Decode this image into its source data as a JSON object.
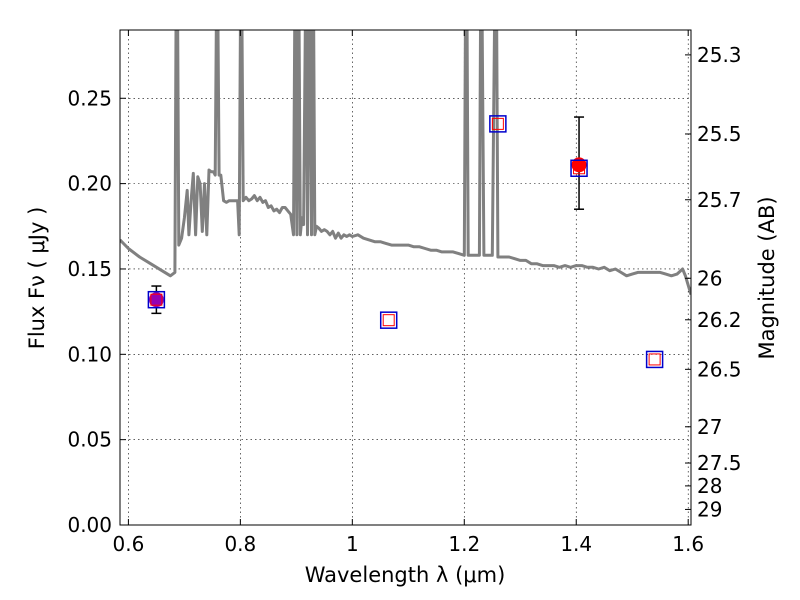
{
  "chart_data": {
    "type": "scatter",
    "title": "",
    "xlabel": "Wavelength  λ (μm)",
    "ylabel": "Flux  Fν  ( μJy )",
    "y2label": "Magnitude (AB)",
    "xlim": [
      0.585,
      1.605
    ],
    "ylim": [
      0.0,
      0.29
    ],
    "grid": true,
    "x_ticks": [
      0.6,
      0.8,
      1.0,
      1.2,
      1.4,
      1.6
    ],
    "x_tick_labels": [
      "0.6",
      "0.8",
      "1",
      "1.2",
      "1.4",
      "1.6"
    ],
    "y_ticks": [
      0.0,
      0.05,
      0.1,
      0.15,
      0.2,
      0.25
    ],
    "y_tick_labels": [
      "0.00",
      "0.05",
      "0.10",
      "0.15",
      "0.20",
      "0.25"
    ],
    "y2_ticks": [
      {
        "label": "25.3",
        "value": 25.3
      },
      {
        "label": "25.5",
        "value": 25.5
      },
      {
        "label": "25.7",
        "value": 25.7
      },
      {
        "label": "26",
        "value": 26.0
      },
      {
        "label": "26.2",
        "value": 26.2
      },
      {
        "label": "26.5",
        "value": 26.5
      },
      {
        "label": "27",
        "value": 27.0
      },
      {
        "label": "27.5",
        "value": 27.5
      },
      {
        "label": "28",
        "value": 28.0
      },
      {
        "label": "29",
        "value": 29.0
      }
    ],
    "series": [
      {
        "kind": "model_spectrum",
        "color": "#808080",
        "points": [
          [
            0.585,
            0.167
          ],
          [
            0.6,
            0.162
          ],
          [
            0.62,
            0.157
          ],
          [
            0.64,
            0.153
          ],
          [
            0.66,
            0.149
          ],
          [
            0.675,
            0.146
          ],
          [
            0.683,
            0.148
          ],
          [
            0.685,
            0.29
          ],
          [
            0.688,
            0.29
          ],
          [
            0.69,
            0.164
          ],
          [
            0.695,
            0.168
          ],
          [
            0.7,
            0.18
          ],
          [
            0.705,
            0.196
          ],
          [
            0.708,
            0.17
          ],
          [
            0.712,
            0.19
          ],
          [
            0.716,
            0.206
          ],
          [
            0.72,
            0.17
          ],
          [
            0.724,
            0.204
          ],
          [
            0.728,
            0.2
          ],
          [
            0.732,
            0.172
          ],
          [
            0.736,
            0.2
          ],
          [
            0.74,
            0.17
          ],
          [
            0.744,
            0.208
          ],
          [
            0.748,
            0.207
          ],
          [
            0.752,
            0.207
          ],
          [
            0.755,
            0.205
          ],
          [
            0.757,
            0.29
          ],
          [
            0.76,
            0.29
          ],
          [
            0.762,
            0.205
          ],
          [
            0.765,
            0.205
          ],
          [
            0.77,
            0.19
          ],
          [
            0.775,
            0.189
          ],
          [
            0.78,
            0.19
          ],
          [
            0.785,
            0.19
          ],
          [
            0.79,
            0.19
          ],
          [
            0.795,
            0.19
          ],
          [
            0.798,
            0.17
          ],
          [
            0.8,
            0.29
          ],
          [
            0.803,
            0.29
          ],
          [
            0.805,
            0.19
          ],
          [
            0.81,
            0.192
          ],
          [
            0.815,
            0.19
          ],
          [
            0.82,
            0.191
          ],
          [
            0.825,
            0.193
          ],
          [
            0.83,
            0.19
          ],
          [
            0.835,
            0.192
          ],
          [
            0.84,
            0.189
          ],
          [
            0.845,
            0.19
          ],
          [
            0.85,
            0.186
          ],
          [
            0.855,
            0.187
          ],
          [
            0.86,
            0.184
          ],
          [
            0.865,
            0.185
          ],
          [
            0.87,
            0.183
          ],
          [
            0.875,
            0.186
          ],
          [
            0.88,
            0.186
          ],
          [
            0.885,
            0.184
          ],
          [
            0.89,
            0.182
          ],
          [
            0.895,
            0.17
          ],
          [
            0.897,
            0.29
          ],
          [
            0.899,
            0.29
          ],
          [
            0.901,
            0.17
          ],
          [
            0.903,
            0.29
          ],
          [
            0.905,
            0.29
          ],
          [
            0.907,
            0.17
          ],
          [
            0.91,
            0.18
          ],
          [
            0.913,
            0.176
          ],
          [
            0.916,
            0.29
          ],
          [
            0.918,
            0.29
          ],
          [
            0.92,
            0.17
          ],
          [
            0.923,
            0.29
          ],
          [
            0.925,
            0.29
          ],
          [
            0.927,
            0.17
          ],
          [
            0.929,
            0.29
          ],
          [
            0.931,
            0.29
          ],
          [
            0.933,
            0.17
          ],
          [
            0.936,
            0.175
          ],
          [
            0.94,
            0.174
          ],
          [
            0.945,
            0.172
          ],
          [
            0.95,
            0.173
          ],
          [
            0.955,
            0.172
          ],
          [
            0.96,
            0.17
          ],
          [
            0.965,
            0.172
          ],
          [
            0.97,
            0.168
          ],
          [
            0.975,
            0.171
          ],
          [
            0.98,
            0.168
          ],
          [
            0.985,
            0.17
          ],
          [
            0.99,
            0.169
          ],
          [
            0.995,
            0.17
          ],
          [
            1.0,
            0.169
          ],
          [
            1.01,
            0.17
          ],
          [
            1.02,
            0.168
          ],
          [
            1.03,
            0.167
          ],
          [
            1.04,
            0.166
          ],
          [
            1.05,
            0.166
          ],
          [
            1.06,
            0.165
          ],
          [
            1.07,
            0.164
          ],
          [
            1.08,
            0.164
          ],
          [
            1.09,
            0.164
          ],
          [
            1.1,
            0.164
          ],
          [
            1.11,
            0.163
          ],
          [
            1.12,
            0.163
          ],
          [
            1.13,
            0.162
          ],
          [
            1.14,
            0.161
          ],
          [
            1.15,
            0.161
          ],
          [
            1.16,
            0.16
          ],
          [
            1.17,
            0.16
          ],
          [
            1.18,
            0.16
          ],
          [
            1.19,
            0.159
          ],
          [
            1.2,
            0.158
          ],
          [
            1.202,
            0.29
          ],
          [
            1.205,
            0.29
          ],
          [
            1.207,
            0.158
          ],
          [
            1.22,
            0.158
          ],
          [
            1.227,
            0.158
          ],
          [
            1.229,
            0.29
          ],
          [
            1.232,
            0.29
          ],
          [
            1.235,
            0.158
          ],
          [
            1.245,
            0.158
          ],
          [
            1.25,
            0.158
          ],
          [
            1.254,
            0.29
          ],
          [
            1.258,
            0.29
          ],
          [
            1.26,
            0.157
          ],
          [
            1.27,
            0.157
          ],
          [
            1.28,
            0.157
          ],
          [
            1.29,
            0.156
          ],
          [
            1.3,
            0.155
          ],
          [
            1.31,
            0.155
          ],
          [
            1.32,
            0.153
          ],
          [
            1.33,
            0.153
          ],
          [
            1.34,
            0.152
          ],
          [
            1.35,
            0.152
          ],
          [
            1.36,
            0.152
          ],
          [
            1.37,
            0.151
          ],
          [
            1.38,
            0.152
          ],
          [
            1.39,
            0.151
          ],
          [
            1.4,
            0.152
          ],
          [
            1.41,
            0.152
          ],
          [
            1.42,
            0.151
          ],
          [
            1.43,
            0.151
          ],
          [
            1.44,
            0.15
          ],
          [
            1.45,
            0.151
          ],
          [
            1.46,
            0.149
          ],
          [
            1.47,
            0.15
          ],
          [
            1.48,
            0.148
          ],
          [
            1.49,
            0.146
          ],
          [
            1.5,
            0.147
          ],
          [
            1.51,
            0.148
          ],
          [
            1.52,
            0.148
          ],
          [
            1.53,
            0.148
          ],
          [
            1.54,
            0.148
          ],
          [
            1.55,
            0.148
          ],
          [
            1.56,
            0.147
          ],
          [
            1.57,
            0.146
          ],
          [
            1.58,
            0.147
          ],
          [
            1.59,
            0.15
          ],
          [
            1.595,
            0.146
          ],
          [
            1.605,
            0.135
          ]
        ]
      },
      {
        "kind": "model_photometry",
        "marker": "square",
        "edge_colors": [
          "#0000cc",
          "#ff0000"
        ],
        "points": [
          {
            "x": 0.65,
            "y": 0.132
          },
          {
            "x": 1.065,
            "y": 0.12
          },
          {
            "x": 1.26,
            "y": 0.235
          },
          {
            "x": 1.405,
            "y": 0.209
          },
          {
            "x": 1.54,
            "y": 0.097
          }
        ]
      },
      {
        "kind": "observed",
        "marker": "circle",
        "points": [
          {
            "x": 0.65,
            "y": 0.132,
            "yerr_low": 0.124,
            "yerr_high": 0.14,
            "color": "#9400b3"
          },
          {
            "x": 1.405,
            "y": 0.211,
            "yerr_low": 0.185,
            "yerr_high": 0.239,
            "color": "#ff0000"
          }
        ]
      }
    ]
  }
}
